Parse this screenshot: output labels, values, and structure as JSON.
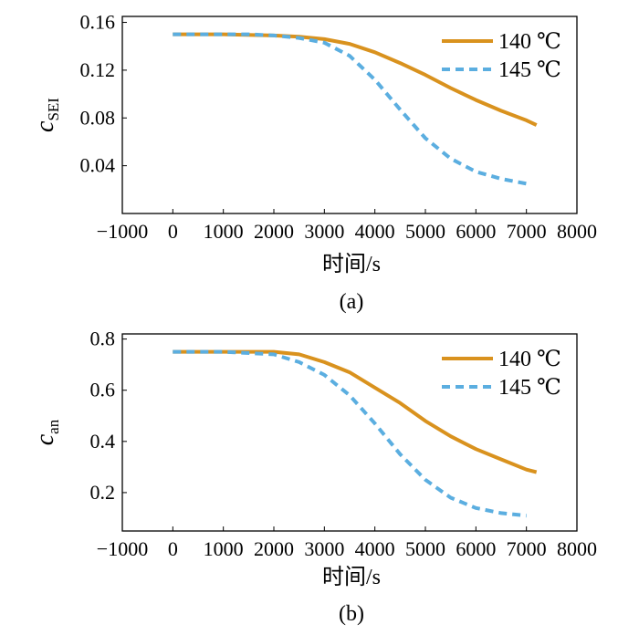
{
  "chart_data": [
    {
      "type": "line",
      "panel_label": "(a)",
      "xlabel": "时间/s",
      "ylabel": {
        "main": "c",
        "sub": "SEI"
      },
      "xlim": [
        -1000,
        8000
      ],
      "ylim": [
        0.0,
        0.165
      ],
      "xticks": [
        -1000,
        0,
        1000,
        2000,
        3000,
        4000,
        5000,
        6000,
        7000,
        8000
      ],
      "xtick_labels": [
        "−1000",
        "0",
        "1000",
        "2000",
        "3000",
        "4000",
        "5000",
        "6000",
        "7000",
        "8000"
      ],
      "yticks": [
        0.04,
        0.08,
        0.12,
        0.16
      ],
      "ytick_labels": [
        "0.04",
        "0.08",
        "0.12",
        "0.16"
      ],
      "legend_position": "top-right",
      "series": [
        {
          "name": "140 ℃",
          "style": "solid",
          "color": "#D9921E",
          "x": [
            0,
            1000,
            2000,
            2500,
            3000,
            3500,
            4000,
            4500,
            5000,
            5500,
            6000,
            6500,
            7000,
            7200
          ],
          "y": [
            0.15,
            0.15,
            0.149,
            0.148,
            0.146,
            0.142,
            0.135,
            0.126,
            0.116,
            0.105,
            0.095,
            0.086,
            0.078,
            0.074
          ]
        },
        {
          "name": "145 ℃",
          "style": "dashed",
          "color": "#5BAEE0",
          "x": [
            0,
            1000,
            1500,
            2000,
            2500,
            3000,
            3500,
            4000,
            4500,
            5000,
            5500,
            6000,
            6500,
            7000
          ],
          "y": [
            0.15,
            0.15,
            0.15,
            0.149,
            0.147,
            0.143,
            0.132,
            0.112,
            0.087,
            0.063,
            0.046,
            0.035,
            0.029,
            0.025
          ]
        }
      ]
    },
    {
      "type": "line",
      "panel_label": "(b)",
      "xlabel": "时间/s",
      "ylabel": {
        "main": "c",
        "sub": "an"
      },
      "xlim": [
        -1000,
        8000
      ],
      "ylim": [
        0.05,
        0.82
      ],
      "xticks": [
        -1000,
        0,
        1000,
        2000,
        3000,
        4000,
        5000,
        6000,
        7000,
        8000
      ],
      "xtick_labels": [
        "−1000",
        "0",
        "1000",
        "2000",
        "3000",
        "4000",
        "5000",
        "6000",
        "7000",
        "8000"
      ],
      "yticks": [
        0.2,
        0.4,
        0.6,
        0.8
      ],
      "ytick_labels": [
        "0.2",
        "0.4",
        "0.6",
        "0.8"
      ],
      "legend_position": "top-right",
      "series": [
        {
          "name": "140 ℃",
          "style": "solid",
          "color": "#D9921E",
          "x": [
            0,
            1000,
            2000,
            2500,
            3000,
            3500,
            4000,
            4500,
            5000,
            5500,
            6000,
            6500,
            7000,
            7200
          ],
          "y": [
            0.75,
            0.75,
            0.75,
            0.74,
            0.71,
            0.67,
            0.61,
            0.55,
            0.48,
            0.42,
            0.37,
            0.33,
            0.29,
            0.28
          ]
        },
        {
          "name": "145 ℃",
          "style": "dashed",
          "color": "#5BAEE0",
          "x": [
            0,
            1000,
            2000,
            2500,
            3000,
            3500,
            4000,
            4500,
            5000,
            5500,
            6000,
            6500,
            7000
          ],
          "y": [
            0.75,
            0.75,
            0.74,
            0.71,
            0.66,
            0.58,
            0.47,
            0.35,
            0.25,
            0.18,
            0.14,
            0.12,
            0.11
          ]
        }
      ]
    }
  ]
}
